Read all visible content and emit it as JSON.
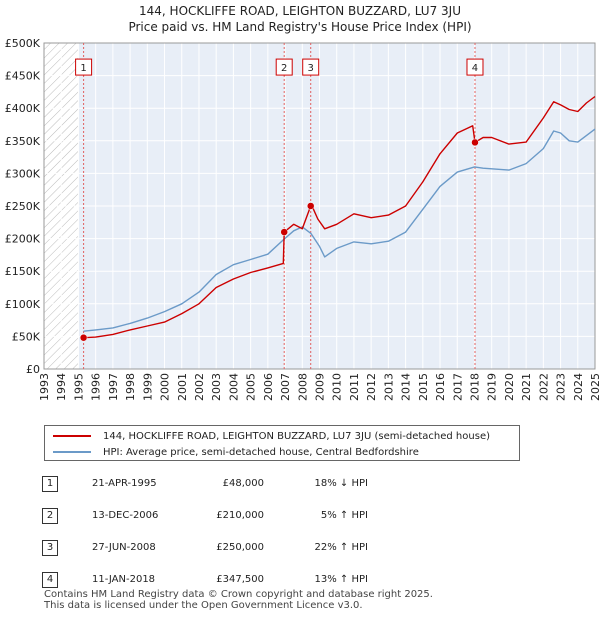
{
  "chart_data": {
    "type": "line",
    "title": "144, HOCKLIFFE ROAD, LEIGHTON BUZZARD, LU7 3JU",
    "subtitle": "Price paid vs. HM Land Registry's House Price Index (HPI)",
    "y_tick_labels": [
      "£0",
      "£50K",
      "£100K",
      "£150K",
      "£200K",
      "£250K",
      "£300K",
      "£350K",
      "£400K",
      "£450K",
      "£500K"
    ],
    "y_tick_values": [
      0,
      50000,
      100000,
      150000,
      200000,
      250000,
      300000,
      350000,
      400000,
      450000,
      500000
    ],
    "ylim": [
      0,
      500000
    ],
    "x_tick_labels": [
      "1993",
      "1994",
      "1995",
      "1996",
      "1997",
      "1998",
      "1999",
      "2000",
      "2001",
      "2002",
      "2003",
      "2004",
      "2005",
      "2006",
      "2007",
      "2008",
      "2009",
      "2010",
      "2011",
      "2012",
      "2013",
      "2014",
      "2015",
      "2016",
      "2017",
      "2018",
      "2019",
      "2020",
      "2021",
      "2022",
      "2023",
      "2024",
      "2025"
    ],
    "xlim": [
      1993,
      2025
    ],
    "series": [
      {
        "name": "144, HOCKLIFFE ROAD, LEIGHTON BUZZARD, LU7 3JU (semi-detached house)",
        "color": "#cc0000",
        "x": [
          1995.3,
          1996.0,
          1997.0,
          1998.0,
          1999.0,
          2000.0,
          2001.0,
          2002.0,
          2003.0,
          2004.0,
          2005.0,
          2006.0,
          2006.9,
          2006.95,
          2007.5,
          2008.0,
          2008.49,
          2008.6,
          2008.9,
          2009.3,
          2010.0,
          2011.0,
          2012.0,
          2013.0,
          2014.0,
          2015.0,
          2016.0,
          2017.0,
          2017.9,
          2018.03,
          2018.5,
          2019.0,
          2020.0,
          2021.0,
          2022.0,
          2022.6,
          2023.0,
          2023.5,
          2024.0,
          2024.5,
          2025.0
        ],
        "y": [
          48000,
          49000,
          53000,
          60000,
          66000,
          72000,
          85000,
          100000,
          125000,
          138000,
          148000,
          155000,
          162000,
          210000,
          222000,
          215000,
          250000,
          248000,
          230000,
          215000,
          222000,
          238000,
          232000,
          236000,
          250000,
          287000,
          330000,
          362000,
          373000,
          347500,
          355000,
          355000,
          345000,
          348000,
          385000,
          410000,
          405000,
          398000,
          395000,
          408000,
          418000
        ]
      },
      {
        "name": "HPI: Average price, semi-detached house, Central Bedfordshire",
        "color": "#6b9ac8",
        "x": [
          1995.3,
          1996.0,
          1997.0,
          1998.0,
          1999.0,
          2000.0,
          2001.0,
          2002.0,
          2003.0,
          2004.0,
          2005.0,
          2006.0,
          2006.9,
          2007.5,
          2008.0,
          2008.5,
          2009.0,
          2009.3,
          2010.0,
          2011.0,
          2012.0,
          2013.0,
          2014.0,
          2015.0,
          2016.0,
          2017.0,
          2018.0,
          2018.5,
          2019.0,
          2020.0,
          2021.0,
          2022.0,
          2022.6,
          2023.0,
          2023.5,
          2024.0,
          2024.5,
          2025.0
        ],
        "y": [
          58000,
          60000,
          63000,
          70000,
          78000,
          88000,
          100000,
          118000,
          145000,
          160000,
          168000,
          176000,
          198000,
          212000,
          218000,
          208000,
          188000,
          172000,
          185000,
          195000,
          192000,
          196000,
          210000,
          245000,
          280000,
          302000,
          310000,
          308000,
          307000,
          305000,
          315000,
          338000,
          365000,
          362000,
          350000,
          348000,
          358000,
          368000
        ]
      }
    ],
    "sales": [
      {
        "label": "1",
        "x": 1995.3,
        "y": 48000
      },
      {
        "label": "2",
        "x": 2006.95,
        "y": 210000
      },
      {
        "label": "3",
        "x": 2008.49,
        "y": 250000
      },
      {
        "label": "4",
        "x": 2018.03,
        "y": 347500
      }
    ],
    "hatch_ranges": [
      [
        1993,
        1995.0
      ]
    ]
  },
  "legend": {
    "property": "144, HOCKLIFFE ROAD, LEIGHTON BUZZARD, LU7 3JU (semi-detached house)",
    "hpi": "HPI: Average price, semi-detached house, Central Bedfordshire"
  },
  "table": [
    {
      "num": "1",
      "date": "21-APR-1995",
      "price": "£48,000",
      "hpi": "18% ↓ HPI"
    },
    {
      "num": "2",
      "date": "13-DEC-2006",
      "price": "£210,000",
      "hpi": "5% ↑ HPI"
    },
    {
      "num": "3",
      "date": "27-JUN-2008",
      "price": "£250,000",
      "hpi": "22% ↑ HPI"
    },
    {
      "num": "4",
      "date": "11-JAN-2018",
      "price": "£347,500",
      "hpi": "13% ↑ HPI"
    }
  ],
  "footer": {
    "line1": "Contains HM Land Registry data © Crown copyright and database right 2025.",
    "line2": "This data is licensed under the Open Government Licence v3.0."
  },
  "colors": {
    "property": "#cc0000",
    "hpi": "#6b9ac8",
    "plot_bg": "#e8eef7"
  }
}
